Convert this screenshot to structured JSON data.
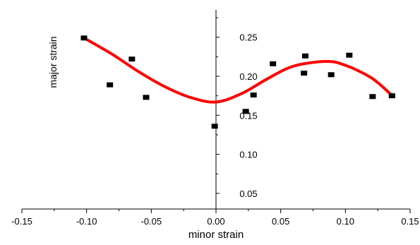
{
  "chart_data": {
    "type": "scatter",
    "title": "",
    "xlabel": "minor strain",
    "ylabel": "major strain",
    "xlim": [
      -0.15,
      0.15
    ],
    "ylim": [
      0.03,
      0.285
    ],
    "grid": false,
    "x_ticks": [
      -0.15,
      -0.1,
      -0.05,
      0.0,
      0.05,
      0.1,
      0.15
    ],
    "x_tick_labels": [
      "-0.15",
      "-0.10",
      "-0.05",
      "0.00",
      "0.05",
      "0.10",
      "0.15"
    ],
    "y_ticks": [
      0.05,
      0.1,
      0.15,
      0.2,
      0.25
    ],
    "y_tick_labels": [
      "0.05",
      "0.10",
      "0.15",
      "0.20",
      "0.25"
    ],
    "points": [
      {
        "x": -0.102,
        "y": 0.249
      },
      {
        "x": -0.082,
        "y": 0.189
      },
      {
        "x": -0.065,
        "y": 0.222
      },
      {
        "x": -0.054,
        "y": 0.173
      },
      {
        "x": -0.001,
        "y": 0.136
      },
      {
        "x": 0.023,
        "y": 0.155
      },
      {
        "x": 0.029,
        "y": 0.176
      },
      {
        "x": 0.044,
        "y": 0.216
      },
      {
        "x": 0.068,
        "y": 0.204
      },
      {
        "x": 0.069,
        "y": 0.226
      },
      {
        "x": 0.089,
        "y": 0.202
      },
      {
        "x": 0.103,
        "y": 0.227
      },
      {
        "x": 0.121,
        "y": 0.174
      },
      {
        "x": 0.136,
        "y": 0.175
      }
    ],
    "fit_curve": {
      "x": [
        -0.102,
        -0.08,
        -0.06,
        -0.04,
        -0.02,
        0.0,
        0.02,
        0.04,
        0.06,
        0.085,
        0.1,
        0.12,
        0.135
      ],
      "y": [
        0.249,
        0.228,
        0.206,
        0.187,
        0.173,
        0.167,
        0.178,
        0.197,
        0.213,
        0.219,
        0.214,
        0.198,
        0.177
      ]
    },
    "colors": {
      "points": "#000000",
      "curve": "#ff0000",
      "axes": "#000000"
    }
  }
}
